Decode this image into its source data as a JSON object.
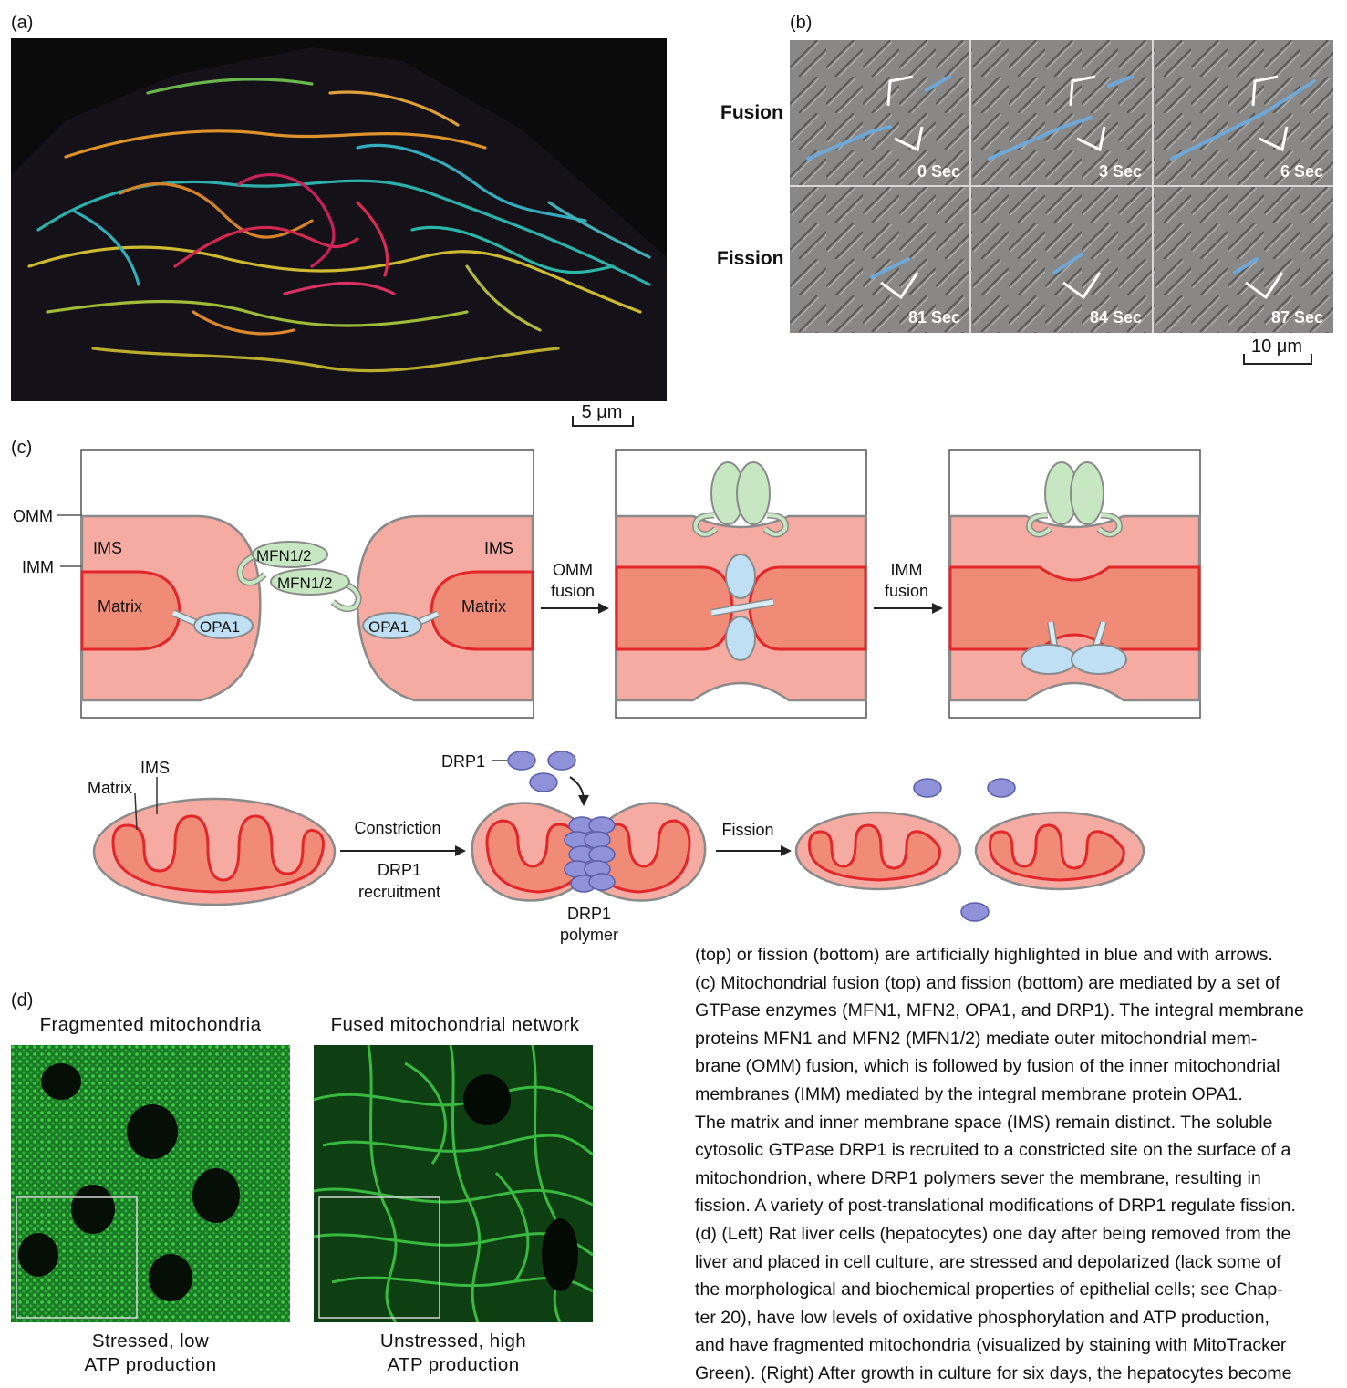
{
  "panels": {
    "a": {
      "label": "(a)",
      "scale": "5 μm"
    },
    "b": {
      "label": "(b)",
      "scale": "10 μm",
      "rows": [
        {
          "label": "Fusion",
          "frames": [
            "0 Sec",
            "3 Sec",
            "6 Sec"
          ]
        },
        {
          "label": "Fission",
          "frames": [
            "81 Sec",
            "84 Sec",
            "87 Sec"
          ]
        }
      ]
    },
    "c": {
      "label": "(c)",
      "fusion": {
        "omm": "OMM",
        "imm": "IMM",
        "ims_left": "IMS",
        "ims_right": "IMS",
        "matrix_left": "Matrix",
        "matrix_right": "Matrix",
        "mfn_top": "MFN1/2",
        "mfn_bottom": "MFN1/2",
        "opa_left": "OPA1",
        "opa_right": "OPA1",
        "arrow1": [
          "OMM",
          "fusion"
        ],
        "arrow2": [
          "IMM",
          "fusion"
        ]
      },
      "fission": {
        "ims": "IMS",
        "matrix": "Matrix",
        "drp1": "DRP1",
        "constriction": "Constriction",
        "recruitment": [
          "DRP1",
          "recruitment"
        ],
        "polymer": [
          "DRP1",
          "polymer"
        ],
        "fission": "Fission"
      }
    },
    "d": {
      "label": "(d)",
      "left_title": "Fragmented mitochondria",
      "right_title": "Fused mitochondrial network",
      "left_caption": [
        "Stressed, low",
        "ATP production"
      ],
      "right_caption": [
        "Unstressed, high",
        "ATP production"
      ]
    }
  },
  "caption_lines": [
    "(top) or fission (bottom) are artificially highlighted in blue and with arrows.",
    "(c) Mitochondrial fusion (top) and fission (bottom) are mediated by a set of",
    "GTPase enzymes (MFN1, MFN2, OPA1, and DRP1). The integral membrane",
    "proteins MFN1 and MFN2 (MFN1/2) mediate outer mitochondrial mem-",
    "brane (OMM) fusion, which is followed by fusion of the inner mitochondrial",
    "membranes (IMM) mediated by the integral membrane protein OPA1.",
    "The matrix and inner membrane space (IMS) remain distinct. The soluble",
    "cytosolic GTPase DRP1 is recruited to a constricted site on the surface of a",
    "mitochondrion, where DRP1 polymers sever the membrane, resulting in",
    "fission. A variety of post-translational modifications of DRP1 regulate fission.",
    "(d) (Left) Rat liver cells (hepatocytes) one day after being removed from the",
    "liver and placed in cell culture, are stressed and depolarized (lack some of",
    "the morphological and biochemical properties of epithelial cells; see Chap-",
    "ter 20), have low levels of oxidative phosphorylation and ATP production,",
    "and have fragmented mitochondria (visualized by staining with MitoTracker",
    "Green). (Right) After growth in culture for six days, the hepatocytes become"
  ],
  "colors": {
    "ims": "#f5aaa2",
    "matrix": "#ef8b77",
    "imm": "#e3262a",
    "omm": "#8a8a8a",
    "mfn": "#c7e7c2",
    "opa": "#bfe0f4",
    "drp": "#8f92d8"
  }
}
